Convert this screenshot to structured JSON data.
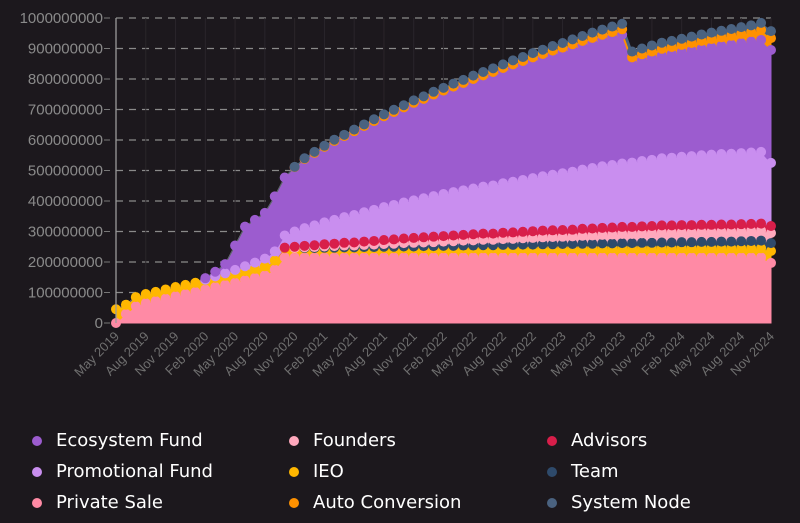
{
  "chart_data": {
    "type": "area",
    "stacked": true,
    "title": "",
    "xlabel": "",
    "ylabel": "",
    "ylim": [
      0,
      1000000000
    ],
    "yticks": [
      0,
      100000000,
      200000000,
      300000000,
      400000000,
      500000000,
      600000000,
      700000000,
      800000000,
      900000000,
      1000000000
    ],
    "ytick_labels": [
      "0",
      "100000000",
      "200000000",
      "300000000",
      "400000000",
      "500000000",
      "600000000",
      "700000000",
      "800000000",
      "900000000",
      "1000000000"
    ],
    "grid": "horizontal-dashed",
    "legend_position": "bottom",
    "x_start": "May 2019",
    "x_end": "Nov 2024",
    "x_interval": "monthly",
    "xtick_labels": [
      "May 2019",
      "Aug 2019",
      "Nov 2019",
      "Feb 2020",
      "May 2020",
      "Aug 2020",
      "Nov 2020",
      "Feb 2021",
      "May 2021",
      "Aug 2021",
      "Nov 2021",
      "Feb 2022",
      "May 2022",
      "Aug 2022",
      "Nov 2022",
      "Feb 2023",
      "May 2023",
      "Aug 2023",
      "Nov 2023",
      "Feb 2024",
      "May 2024",
      "Aug 2024",
      "Nov 2024"
    ],
    "stack_order_bottom_to_top": [
      "Private Sale",
      "IEO",
      "Team",
      "Founders",
      "Advisors",
      "Promotional Fund",
      "Ecosystem Fund",
      "Auto Conversion",
      "System Node"
    ],
    "series": [
      {
        "name": "Private Sale",
        "color": "#ff8aa5",
        "values": [
          0,
          30,
          55,
          65,
          72,
          80,
          88,
          95,
          102,
          110,
          118,
          125,
          132,
          140,
          148,
          156,
          175,
          215,
          215,
          215,
          215,
          215,
          215,
          215,
          215,
          215,
          215,
          215,
          215,
          215,
          215,
          215,
          215,
          215,
          215,
          215,
          215,
          215,
          215,
          215,
          215,
          215,
          215,
          215,
          215,
          215,
          215,
          215,
          215,
          215,
          215,
          215,
          215,
          215,
          215,
          215,
          215,
          215,
          215,
          215,
          215,
          215,
          215,
          215,
          215,
          215,
          197
        ]
      },
      {
        "name": "IEO",
        "color": "#ffb700",
        "values": [
          45,
          30,
          30,
          30,
          30,
          30,
          30,
          30,
          30,
          30,
          30,
          30,
          30,
          30,
          30,
          30,
          30,
          30,
          30,
          30,
          30,
          30,
          30,
          30,
          30,
          30,
          30,
          30,
          30,
          30,
          30,
          30,
          30,
          30,
          30,
          30,
          30,
          30,
          30,
          30,
          30,
          30,
          30,
          30,
          30,
          30,
          30,
          30,
          30,
          30,
          30,
          30,
          30,
          30,
          30,
          30,
          30,
          30,
          30,
          30,
          30,
          30,
          30,
          30,
          30,
          30,
          39
        ]
      },
      {
        "name": "Team",
        "color": "#2e4a6b",
        "values": [
          0,
          0,
          0,
          0,
          0,
          0,
          0,
          0,
          0,
          0,
          0,
          0,
          0,
          0,
          0,
          0,
          0,
          0,
          0,
          1,
          1,
          2,
          2,
          3,
          3,
          4,
          4,
          5,
          5,
          6,
          6,
          7,
          7,
          8,
          8,
          9,
          9,
          10,
          10,
          11,
          11,
          12,
          12,
          13,
          13,
          14,
          14,
          15,
          15,
          16,
          16,
          17,
          17,
          18,
          18,
          19,
          19,
          20,
          20,
          21,
          21,
          22,
          22,
          23,
          24,
          25,
          26
        ]
      },
      {
        "name": "Founders",
        "color": "#ffa9bd",
        "values": [
          0,
          0,
          0,
          0,
          0,
          0,
          0,
          0,
          0,
          0,
          0,
          0,
          0,
          0,
          0,
          0,
          0,
          0,
          1,
          2,
          3,
          4,
          5,
          6,
          6,
          7,
          8,
          9,
          10,
          11,
          12,
          12,
          13,
          14,
          15,
          16,
          17,
          18,
          18,
          19,
          20,
          21,
          22,
          23,
          24,
          24,
          25,
          26,
          27,
          28,
          29,
          30,
          30,
          31,
          32,
          33,
          33,
          33,
          33,
          33,
          33,
          33,
          33,
          33,
          33,
          33,
          33
        ]
      },
      {
        "name": "Advisors",
        "color": "#d81e4a",
        "values": [
          0,
          0,
          0,
          0,
          0,
          0,
          0,
          0,
          0,
          0,
          0,
          0,
          0,
          0,
          0,
          0,
          0,
          2,
          4,
          5,
          6,
          7,
          8,
          9,
          10,
          11,
          12,
          13,
          14,
          15,
          16,
          17,
          18,
          18,
          19,
          19,
          20,
          20,
          20,
          21,
          21,
          21,
          22,
          22,
          22,
          22,
          22,
          23,
          23,
          23,
          23,
          23,
          23,
          23,
          23,
          23,
          23,
          23,
          23,
          23,
          23,
          23,
          23,
          23,
          23,
          23,
          23
        ]
      },
      {
        "name": "Promotional Fund",
        "color": "#c98eef",
        "values": [
          0,
          0,
          0,
          0,
          0,
          0,
          0,
          0,
          0,
          2,
          5,
          8,
          12,
          16,
          20,
          25,
          30,
          40,
          50,
          58,
          65,
          72,
          78,
          84,
          90,
          96,
          102,
          108,
          113,
          118,
          123,
          128,
          133,
          138,
          142,
          146,
          150,
          154,
          158,
          162,
          166,
          170,
          174,
          178,
          182,
          186,
          190,
          194,
          198,
          202,
          205,
          208,
          211,
          214,
          217,
          220,
          222,
          224,
          226,
          228,
          230,
          231,
          232,
          233,
          234,
          235,
          207
        ]
      },
      {
        "name": "Ecosystem Fund",
        "color": "#9c5ccf",
        "values": [
          0,
          0,
          0,
          0,
          0,
          0,
          0,
          0,
          0,
          5,
          15,
          30,
          80,
          130,
          140,
          150,
          180,
          190,
          210,
          225,
          235,
          245,
          255,
          262,
          270,
          278,
          285,
          292,
          298,
          305,
          312,
          318,
          324,
          330,
          336,
          342,
          348,
          354,
          360,
          366,
          372,
          377,
          382,
          387,
          392,
          397,
          402,
          406,
          410,
          414,
          418,
          422,
          326,
          330,
          334,
          337,
          340,
          343,
          346,
          349,
          352,
          355,
          358,
          361,
          364,
          367,
          370
        ]
      },
      {
        "name": "Auto Conversion",
        "color": "#ff9100",
        "values": [
          0,
          0,
          0,
          0,
          0,
          0,
          0,
          0,
          0,
          0,
          0,
          0,
          0,
          0,
          0,
          0,
          0,
          0,
          1,
          2,
          3,
          3,
          4,
          4,
          5,
          5,
          6,
          6,
          7,
          7,
          8,
          8,
          9,
          9,
          10,
          10,
          11,
          11,
          12,
          12,
          13,
          13,
          14,
          14,
          15,
          15,
          16,
          16,
          17,
          17,
          18,
          18,
          19,
          20,
          21,
          22,
          23,
          24,
          25,
          26,
          27,
          28,
          29,
          30,
          31,
          33,
          39
        ]
      },
      {
        "name": "System Node",
        "color": "#4a6280",
        "values": [
          0,
          0,
          0,
          0,
          0,
          0,
          0,
          0,
          0,
          0,
          0,
          0,
          0,
          0,
          0,
          0,
          0,
          0,
          1,
          2,
          3,
          3,
          4,
          4,
          5,
          5,
          6,
          6,
          7,
          7,
          8,
          8,
          9,
          9,
          10,
          10,
          11,
          11,
          12,
          12,
          13,
          13,
          14,
          14,
          15,
          15,
          16,
          16,
          17,
          17,
          18,
          18,
          19,
          19,
          20,
          20,
          20,
          20,
          21,
          21,
          21,
          21,
          22,
          22,
          22,
          23,
          23
        ]
      }
    ],
    "value_unit_multiplier": 1000000
  },
  "legend": {
    "columns": [
      [
        {
          "label": "Ecosystem Fund",
          "color": "#9c5ccf"
        },
        {
          "label": "Promotional Fund",
          "color": "#c98eef"
        },
        {
          "label": "Private Sale",
          "color": "#ff8aa5"
        }
      ],
      [
        {
          "label": "Founders",
          "color": "#ffa9bd"
        },
        {
          "label": "IEO",
          "color": "#ffb700"
        },
        {
          "label": "Auto Conversion",
          "color": "#ff9100"
        }
      ],
      [
        {
          "label": "Advisors",
          "color": "#d81e4a"
        },
        {
          "label": "Team",
          "color": "#2e4a6b"
        },
        {
          "label": "System Node",
          "color": "#4a6280"
        }
      ]
    ]
  },
  "colors": {
    "background": "#1c181d",
    "grid": "#8a8a8a",
    "axis": "#9a9a9a"
  }
}
